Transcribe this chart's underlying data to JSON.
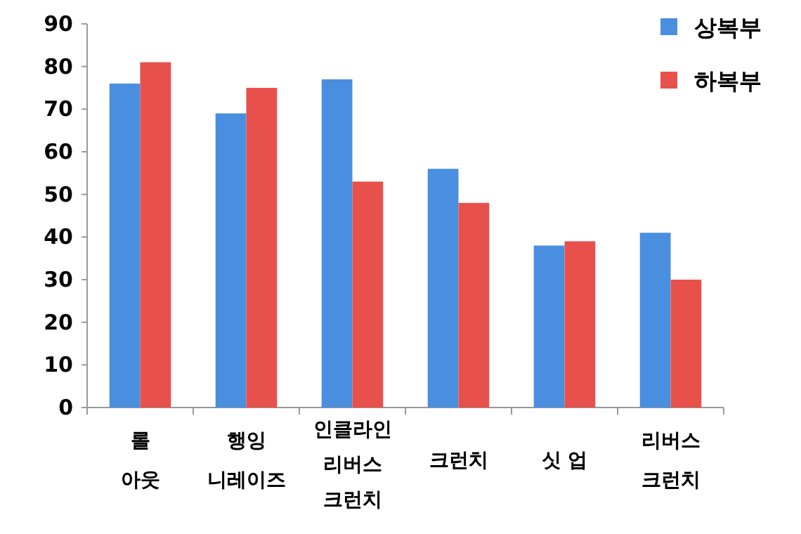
{
  "chart_data": {
    "type": "bar",
    "categories": [
      "롤\n아웃",
      "행잉\n니레이즈",
      "인클라인\n리버스\n크런치",
      "크런치",
      "싯 업",
      "리버스\n크런치"
    ],
    "series": [
      {
        "name": "상복부",
        "color": "#4a8ee0",
        "values": [
          76,
          69,
          77,
          56,
          38,
          41
        ]
      },
      {
        "name": "하복부",
        "color": "#e8504c",
        "values": [
          81,
          75,
          53,
          48,
          39,
          30
        ]
      }
    ],
    "ylim": [
      0,
      90
    ],
    "yticks": [
      0,
      10,
      20,
      30,
      40,
      50,
      60,
      70,
      80,
      90
    ],
    "legend": "top right",
    "grid": false
  }
}
